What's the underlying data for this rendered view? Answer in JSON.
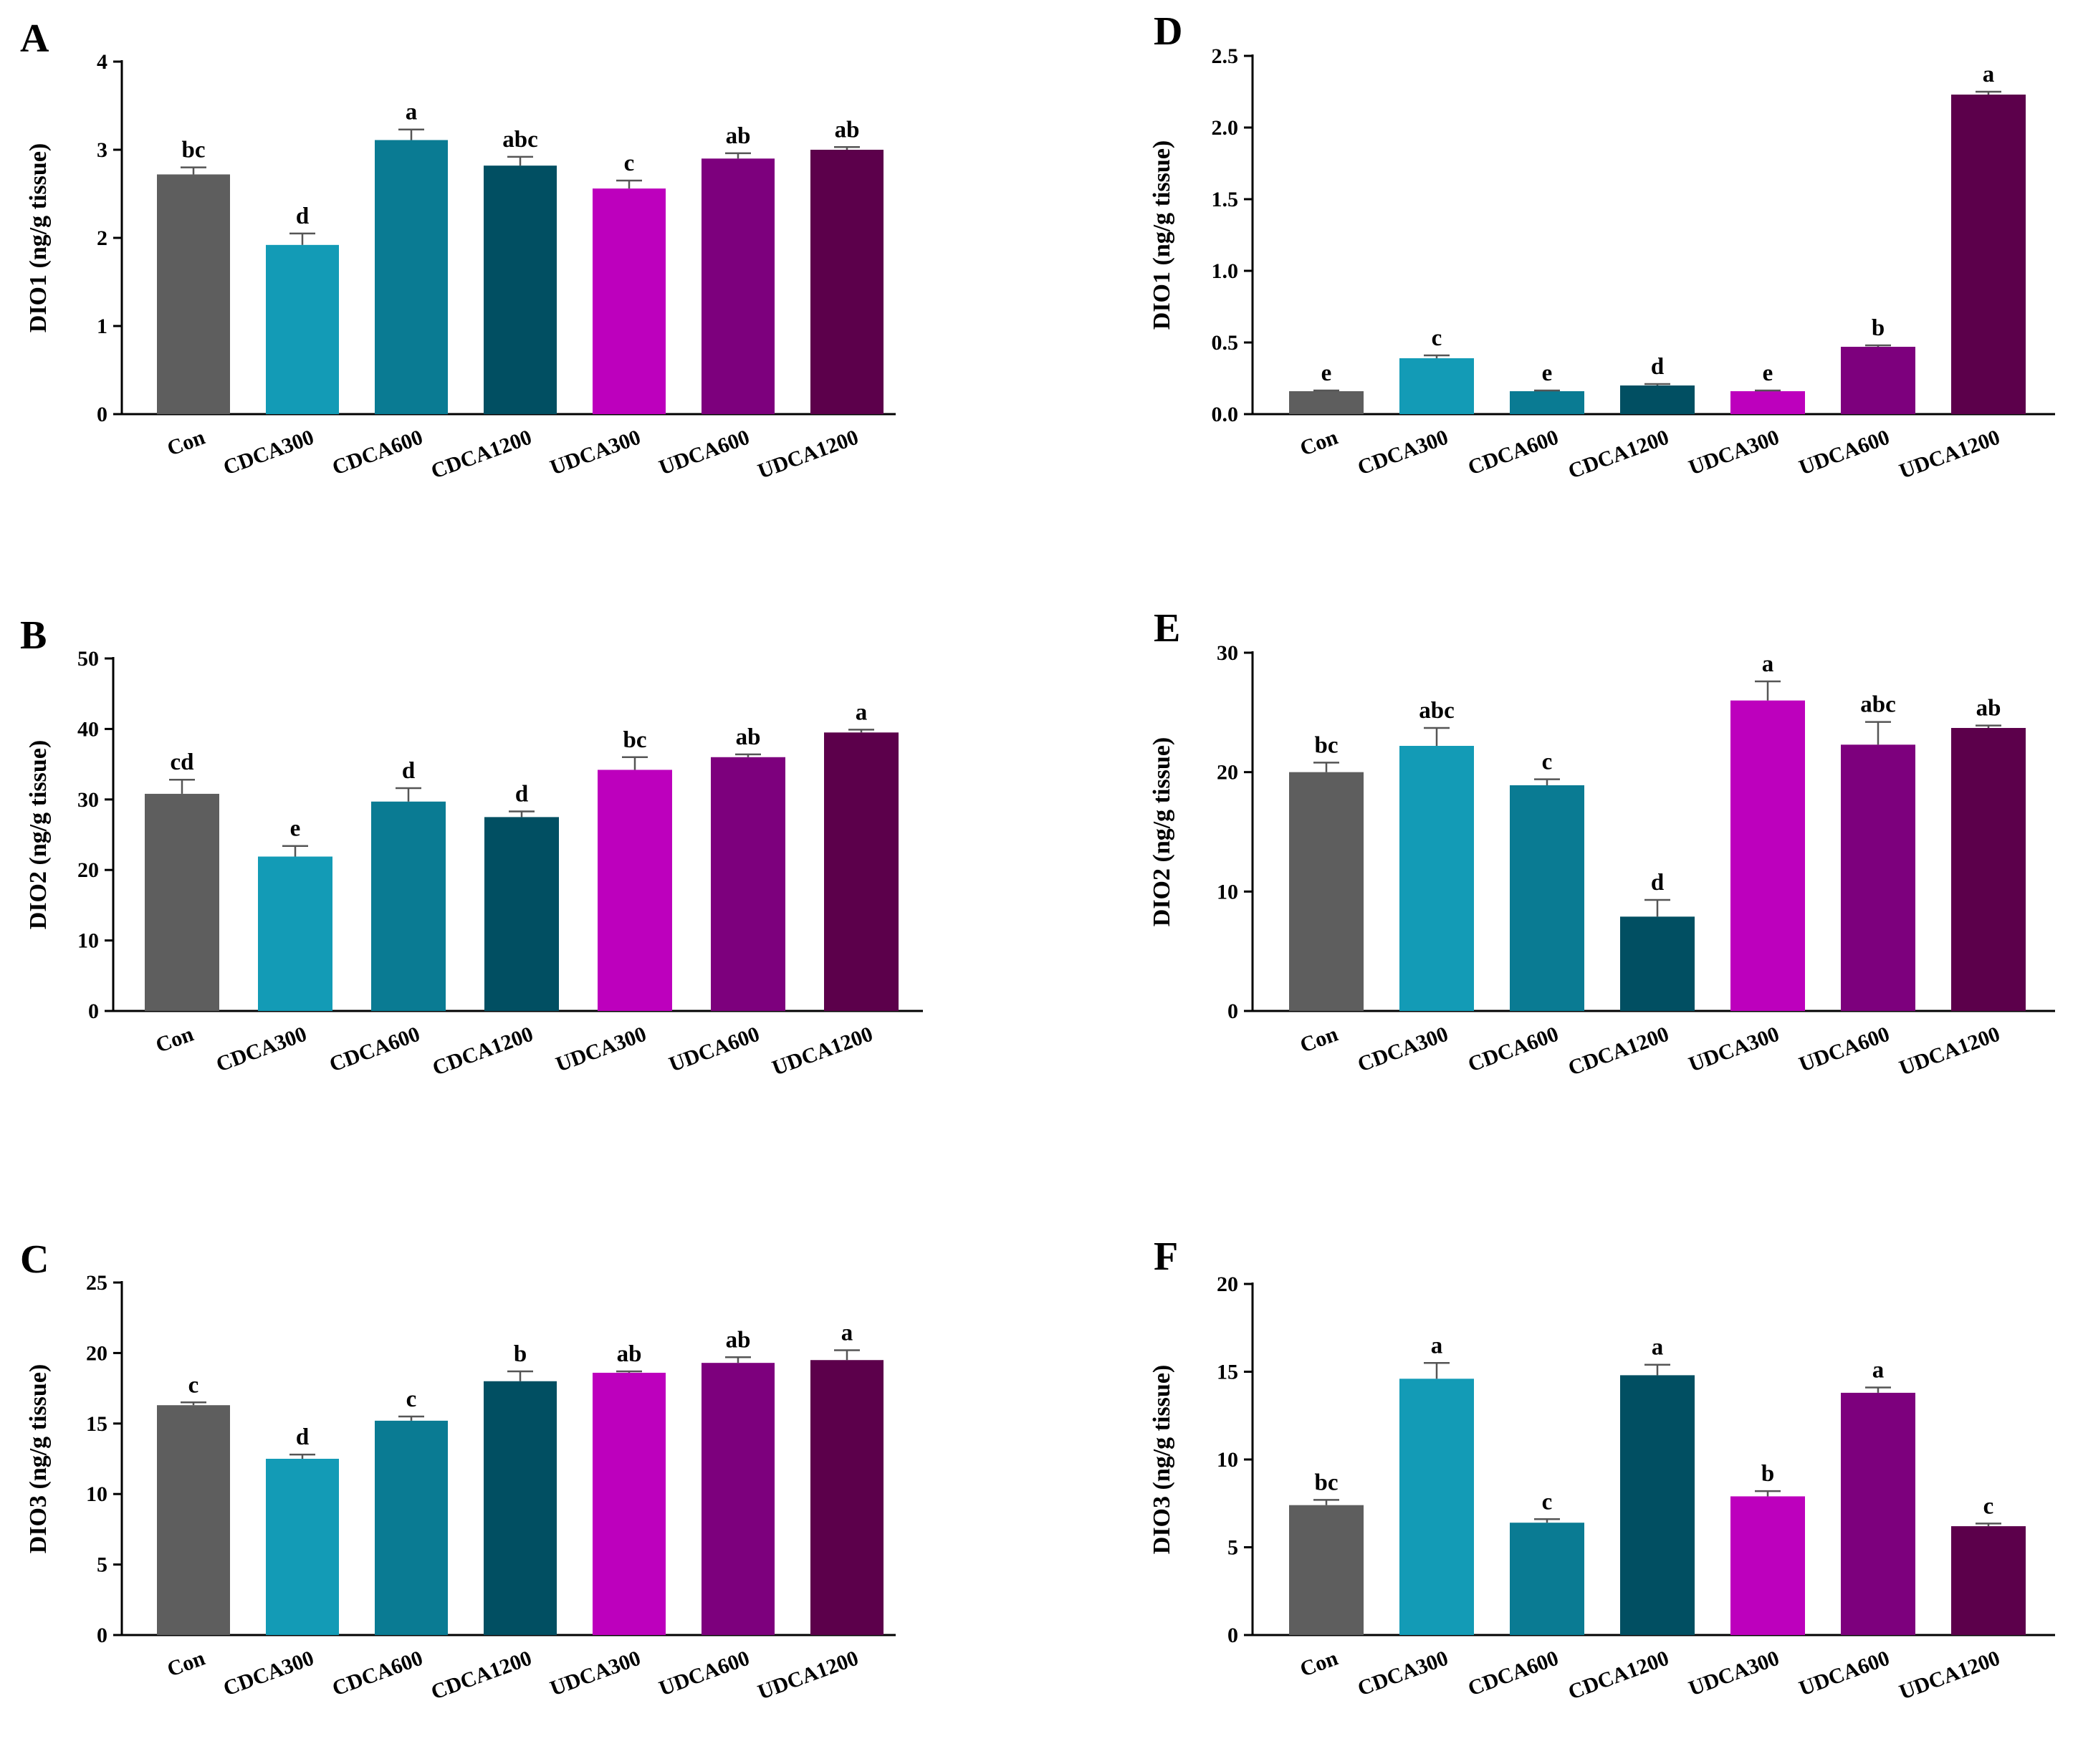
{
  "colors": [
    "#5e5e5e",
    "#139bb6",
    "#0a7b93",
    "#014f62",
    "#bd00bd",
    "#7d007d",
    "#5c004b"
  ],
  "categories": [
    "Con",
    "CDCA300",
    "CDCA600",
    "CDCA1200",
    "UDCA300",
    "UDCA600",
    "UDCA1200"
  ],
  "chart_data": [
    {
      "panel": "A",
      "type": "bar",
      "ylabel": "DIO1 (ng/g tissue)",
      "categories": [
        "Con",
        "CDCA300",
        "CDCA600",
        "CDCA1200",
        "UDCA300",
        "UDCA600",
        "UDCA1200"
      ],
      "values": [
        2.72,
        1.92,
        3.11,
        2.82,
        2.56,
        2.9,
        3.0
      ],
      "errors": [
        0.08,
        0.13,
        0.12,
        0.1,
        0.09,
        0.06,
        0.03
      ],
      "letters": [
        "bc",
        "d",
        "a",
        "abc",
        "c",
        "ab",
        "ab"
      ],
      "ylim": [
        0,
        4
      ],
      "yticks": [
        "0",
        "1",
        "2",
        "3",
        "4"
      ]
    },
    {
      "panel": "B",
      "type": "bar",
      "ylabel": "DIO2 (ng/g tissue)",
      "categories": [
        "Con",
        "CDCA300",
        "CDCA600",
        "CDCA1200",
        "UDCA300",
        "UDCA600",
        "UDCA1200"
      ],
      "values": [
        30.8,
        21.9,
        29.7,
        27.5,
        34.2,
        36.0,
        39.5
      ],
      "errors": [
        2.0,
        1.5,
        1.9,
        0.8,
        1.8,
        0.4,
        0.4
      ],
      "letters": [
        "cd",
        "e",
        "d",
        "d",
        "bc",
        "ab",
        "a"
      ],
      "ylim": [
        0,
        50
      ],
      "yticks": [
        "0",
        "10",
        "20",
        "30",
        "40",
        "50"
      ]
    },
    {
      "panel": "C",
      "type": "bar",
      "ylabel": "DIO3 (ng/g tissue)",
      "categories": [
        "Con",
        "CDCA300",
        "CDCA600",
        "CDCA1200",
        "UDCA300",
        "UDCA600",
        "UDCA1200"
      ],
      "values": [
        16.3,
        12.5,
        15.2,
        18.0,
        18.6,
        19.3,
        19.5
      ],
      "errors": [
        0.2,
        0.3,
        0.3,
        0.7,
        0.1,
        0.4,
        0.7
      ],
      "letters": [
        "c",
        "d",
        "c",
        "b",
        "ab",
        "ab",
        "a"
      ],
      "ylim": [
        0,
        25
      ],
      "yticks": [
        "0",
        "5",
        "10",
        "15",
        "20",
        "25"
      ]
    },
    {
      "panel": "D",
      "type": "bar",
      "ylabel": "DIO1 (ng/g tissue)",
      "categories": [
        "Con",
        "CDCA300",
        "CDCA600",
        "CDCA1200",
        "UDCA300",
        "UDCA600",
        "UDCA1200"
      ],
      "values": [
        0.16,
        0.39,
        0.16,
        0.2,
        0.16,
        0.47,
        2.23
      ],
      "errors": [
        0.005,
        0.02,
        0.005,
        0.01,
        0.005,
        0.01,
        0.02
      ],
      "letters": [
        "e",
        "c",
        "e",
        "d",
        "e",
        "b",
        "a"
      ],
      "ylim": [
        0,
        2.5
      ],
      "yticks": [
        "0.0",
        "0.5",
        "1.0",
        "1.5",
        "2.0",
        "2.5"
      ]
    },
    {
      "panel": "E",
      "type": "bar",
      "ylabel": "DIO2 (ng/g tissue)",
      "categories": [
        "Con",
        "CDCA300",
        "CDCA600",
        "CDCA1200",
        "UDCA300",
        "UDCA600",
        "UDCA1200"
      ],
      "values": [
        20.0,
        22.2,
        18.9,
        7.9,
        26.0,
        22.3,
        23.7
      ],
      "errors": [
        0.8,
        1.5,
        0.5,
        1.4,
        1.6,
        1.9,
        0.2
      ],
      "letters": [
        "bc",
        "abc",
        "c",
        "d",
        "a",
        "abc",
        "ab"
      ],
      "ylim": [
        0,
        30
      ],
      "yticks": [
        "0",
        "10",
        "20",
        "30"
      ]
    },
    {
      "panel": "F",
      "type": "bar",
      "ylabel": "DIO3 (ng/g tissue)",
      "categories": [
        "Con",
        "CDCA300",
        "CDCA600",
        "CDCA1200",
        "UDCA300",
        "UDCA600",
        "UDCA1200"
      ],
      "values": [
        7.4,
        14.6,
        6.4,
        14.8,
        7.9,
        13.8,
        6.2
      ],
      "errors": [
        0.3,
        0.9,
        0.2,
        0.6,
        0.3,
        0.3,
        0.15
      ],
      "letters": [
        "bc",
        "a",
        "c",
        "a",
        "b",
        "a",
        "c"
      ],
      "ylim": [
        0,
        20
      ],
      "yticks": [
        "0",
        "5",
        "10",
        "15",
        "20"
      ]
    }
  ]
}
